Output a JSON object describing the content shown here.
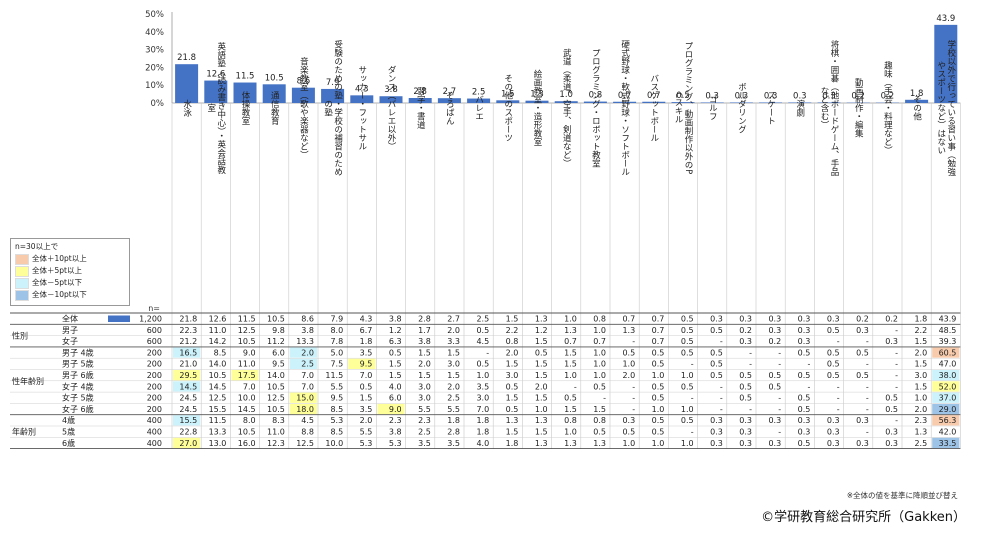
{
  "chart_data": {
    "type": "bar",
    "yaxis_ticks": [
      "50%",
      "40%",
      "30%",
      "20%",
      "10%",
      "0%"
    ],
    "ylim": [
      0,
      50
    ],
    "grid": false,
    "n_label": "n=",
    "categories": [
      "水泳",
      "英語塾（読み書き中心）・英会話教室",
      "体操教室",
      "通信教育",
      "音楽教室（歌や楽器など）",
      "受験のための塾・学校の補習のための塾",
      "サッカー・フットサル",
      "ダンス（バレエ以外）",
      "習字・書道",
      "そろばん",
      "バレエ",
      "その他のスポーツ",
      "絵画教室・造形教室",
      "武道（柔道、空手、剣道など）",
      "プログラミング・ロボット教室",
      "硬式野球・軟式野球・ソフトボール",
      "バスケットボール",
      "プログラミング、動画制作以外のPCスキル",
      "ゴルフ",
      "ボルダリング",
      "スケート",
      "演劇",
      "将棋・囲碁（他ボードゲーム、手品など含む）",
      "動画制作・編集",
      "趣味（手芸・料理など）",
      "その他",
      "学校以外で行っている習い事（勉強やスポーツなど）はない"
    ],
    "values": [
      21.8,
      12.6,
      11.5,
      10.5,
      8.6,
      7.9,
      4.3,
      3.8,
      2.8,
      2.7,
      2.5,
      1.5,
      1.3,
      1.0,
      0.8,
      0.7,
      0.7,
      0.5,
      0.3,
      0.3,
      0.3,
      0.3,
      0.3,
      0.2,
      0.2,
      1.8,
      43.9
    ],
    "value_labels": [
      "21.8",
      "12.6",
      "11.5",
      "10.5",
      "8.6",
      "7.9",
      "4.3",
      "3.8",
      "2.8",
      "2.7",
      "2.5",
      "1.5",
      "1.3",
      "1.0",
      "0.8",
      "0.7",
      "0.7",
      "0.5",
      "0.3",
      "0.3",
      "0.3",
      "0.3",
      "0.3",
      "0.2",
      "0.2",
      "1.8",
      "43.9"
    ],
    "bar_color": "#4472c4",
    "table": {
      "rows": [
        {
          "group": "",
          "label": "全体",
          "n": "1,200",
          "cells": [
            "21.8",
            "12.6",
            "11.5",
            "10.5",
            "8.6",
            "7.9",
            "4.3",
            "3.8",
            "2.8",
            "2.7",
            "2.5",
            "1.5",
            "1.3",
            "1.0",
            "0.8",
            "0.7",
            "0.7",
            "0.5",
            "0.3",
            "0.3",
            "0.3",
            "0.3",
            "0.3",
            "0.2",
            "0.2",
            "1.8",
            "43.9"
          ]
        },
        {
          "group": "性別",
          "label": "男子",
          "n": "600",
          "cells": [
            "22.3",
            "11.0",
            "12.5",
            "9.8",
            "3.8",
            "8.0",
            "6.7",
            "1.2",
            "1.7",
            "2.0",
            "0.5",
            "2.2",
            "1.2",
            "1.3",
            "1.0",
            "1.3",
            "0.7",
            "0.5",
            "0.5",
            "0.2",
            "0.3",
            "0.3",
            "0.5",
            "0.3",
            "-",
            "2.2",
            "48.5"
          ]
        },
        {
          "group": "",
          "label": "女子",
          "n": "600",
          "cells": [
            "21.2",
            "14.2",
            "10.5",
            "11.2",
            "13.3",
            "7.8",
            "1.8",
            "6.3",
            "3.8",
            "3.3",
            "4.5",
            "0.8",
            "1.5",
            "0.7",
            "0.7",
            "-",
            "0.7",
            "0.5",
            "-",
            "0.3",
            "0.2",
            "0.3",
            "-",
            "-",
            "0.3",
            "1.5",
            "39.3"
          ]
        },
        {
          "group": "性年齢別",
          "label": "男子 4歳",
          "n": "200",
          "cells": [
            "16.5",
            "8.5",
            "9.0",
            "6.0",
            "2.0",
            "5.0",
            "3.5",
            "0.5",
            "1.5",
            "1.5",
            "-",
            "2.0",
            "0.5",
            "1.5",
            "1.0",
            "0.5",
            "0.5",
            "0.5",
            "0.5",
            "-",
            "-",
            "0.5",
            "0.5",
            "0.5",
            "-",
            "2.0",
            "60.5"
          ]
        },
        {
          "group": "",
          "label": "男子 5歳",
          "n": "200",
          "cells": [
            "21.0",
            "14.0",
            "11.0",
            "9.5",
            "2.5",
            "7.5",
            "9.5",
            "1.5",
            "2.0",
            "3.0",
            "0.5",
            "1.5",
            "1.5",
            "1.5",
            "1.0",
            "1.0",
            "0.5",
            "-",
            "0.5",
            "-",
            "-",
            "-",
            "0.5",
            "-",
            "-",
            "1.5",
            "47.0"
          ]
        },
        {
          "group": "",
          "label": "男子 6歳",
          "n": "200",
          "cells": [
            "29.5",
            "10.5",
            "17.5",
            "14.0",
            "7.0",
            "11.5",
            "7.0",
            "1.5",
            "1.5",
            "1.5",
            "1.0",
            "3.0",
            "1.5",
            "1.0",
            "1.0",
            "2.0",
            "1.0",
            "1.0",
            "0.5",
            "0.5",
            "0.5",
            "0.5",
            "0.5",
            "0.5",
            "-",
            "3.0",
            "38.0"
          ]
        },
        {
          "group": "",
          "label": "女子 4歳",
          "n": "200",
          "cells": [
            "14.5",
            "14.5",
            "7.0",
            "10.5",
            "7.0",
            "5.5",
            "0.5",
            "4.0",
            "3.0",
            "2.0",
            "3.5",
            "0.5",
            "2.0",
            "-",
            "0.5",
            "-",
            "0.5",
            "0.5",
            "-",
            "0.5",
            "0.5",
            "-",
            "-",
            "-",
            "-",
            "1.5",
            "52.0"
          ]
        },
        {
          "group": "",
          "label": "女子 5歳",
          "n": "200",
          "cells": [
            "24.5",
            "12.5",
            "10.0",
            "12.5",
            "15.0",
            "9.5",
            "1.5",
            "6.0",
            "3.0",
            "2.5",
            "3.0",
            "1.5",
            "1.5",
            "0.5",
            "-",
            "-",
            "0.5",
            "-",
            "-",
            "0.5",
            "-",
            "0.5",
            "-",
            "-",
            "0.5",
            "1.0",
            "37.0"
          ]
        },
        {
          "group": "",
          "label": "女子 6歳",
          "n": "200",
          "cells": [
            "24.5",
            "15.5",
            "14.5",
            "10.5",
            "18.0",
            "8.5",
            "3.5",
            "9.0",
            "5.5",
            "5.5",
            "7.0",
            "0.5",
            "1.0",
            "1.5",
            "1.5",
            "-",
            "1.0",
            "1.0",
            "-",
            "-",
            "-",
            "0.5",
            "-",
            "-",
            "0.5",
            "2.0",
            "29.0"
          ]
        },
        {
          "group": "年齢別",
          "label": "4歳",
          "n": "400",
          "cells": [
            "15.5",
            "11.5",
            "8.0",
            "8.3",
            "4.5",
            "5.3",
            "2.0",
            "2.3",
            "2.3",
            "1.8",
            "1.8",
            "1.3",
            "1.3",
            "0.8",
            "0.8",
            "0.3",
            "0.5",
            "0.5",
            "0.3",
            "0.3",
            "0.3",
            "0.3",
            "0.3",
            "0.3",
            "-",
            "2.3",
            "56.3"
          ]
        },
        {
          "group": "",
          "label": "5歳",
          "n": "400",
          "cells": [
            "22.8",
            "13.3",
            "10.5",
            "11.0",
            "8.8",
            "8.5",
            "5.5",
            "3.8",
            "2.5",
            "2.8",
            "1.8",
            "1.5",
            "1.5",
            "1.0",
            "0.5",
            "0.5",
            "0.5",
            "-",
            "0.3",
            "0.3",
            "-",
            "0.3",
            "0.3",
            "-",
            "0.3",
            "1.3",
            "42.0"
          ]
        },
        {
          "group": "",
          "label": "6歳",
          "n": "400",
          "cells": [
            "27.0",
            "13.0",
            "16.0",
            "12.3",
            "12.5",
            "10.0",
            "5.3",
            "5.3",
            "3.5",
            "3.5",
            "4.0",
            "1.8",
            "1.3",
            "1.3",
            "1.3",
            "1.0",
            "1.0",
            "1.0",
            "0.3",
            "0.3",
            "0.3",
            "0.5",
            "0.3",
            "0.3",
            "0.3",
            "2.5",
            "33.5"
          ]
        }
      ],
      "highlights": [
        {
          "row": 3,
          "col": 0,
          "kind": "m5"
        },
        {
          "row": 3,
          "col": 4,
          "kind": "m5"
        },
        {
          "row": 3,
          "col": 26,
          "kind": "p10"
        },
        {
          "row": 4,
          "col": 4,
          "kind": "m5"
        },
        {
          "row": 4,
          "col": 6,
          "kind": "p5"
        },
        {
          "row": 5,
          "col": 0,
          "kind": "p5"
        },
        {
          "row": 5,
          "col": 2,
          "kind": "p5"
        },
        {
          "row": 5,
          "col": 26,
          "kind": "m5"
        },
        {
          "row": 6,
          "col": 0,
          "kind": "m5"
        },
        {
          "row": 6,
          "col": 26,
          "kind": "p5"
        },
        {
          "row": 7,
          "col": 4,
          "kind": "p5"
        },
        {
          "row": 7,
          "col": 26,
          "kind": "m5"
        },
        {
          "row": 8,
          "col": 4,
          "kind": "p5"
        },
        {
          "row": 8,
          "col": 7,
          "kind": "p5"
        },
        {
          "row": 8,
          "col": 26,
          "kind": "m10"
        },
        {
          "row": 9,
          "col": 0,
          "kind": "m5"
        },
        {
          "row": 9,
          "col": 26,
          "kind": "p10"
        },
        {
          "row": 11,
          "col": 0,
          "kind": "p5"
        },
        {
          "row": 11,
          "col": 26,
          "kind": "m10"
        }
      ]
    },
    "legend": {
      "title": "n=30以上で",
      "items": [
        {
          "key": "p10",
          "label": "全体＋10pt以上",
          "color": "#f8cbad"
        },
        {
          "key": "p5",
          "label": "全体＋5pt以上",
          "color": "#ffff99"
        },
        {
          "key": "m5",
          "label": "全体－5pt以下",
          "color": "#ccf2fb"
        },
        {
          "key": "m10",
          "label": "全体－10pt以下",
          "color": "#9dc3e6"
        }
      ]
    }
  },
  "note": "※全体の値を基準に降順並び替え",
  "copyright": "©学研教育総合研究所（Gakken）"
}
